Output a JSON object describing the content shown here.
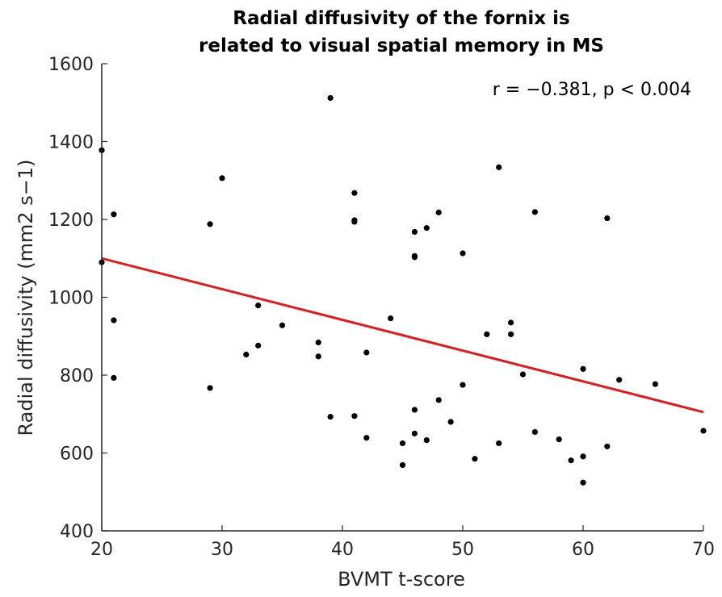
{
  "chart_data": {
    "type": "scatter",
    "title": [
      "Radial diffusivity of the fornix is",
      "related to visual spatial memory in MS"
    ],
    "xlabel": "BVMT t-score",
    "ylabel": "Radial diffusivity (mm2 s−1)",
    "xlim": [
      20,
      70
    ],
    "ylim": [
      400,
      1600
    ],
    "xticks": [
      20,
      30,
      40,
      50,
      60,
      70
    ],
    "yticks": [
      400,
      600,
      800,
      1000,
      1200,
      1400,
      1600
    ],
    "annotation": "r = −0.381, p < 0.004",
    "grid": false,
    "colors": {
      "points": "#000000",
      "fit_line": "#e31a1c",
      "axis": "#262626"
    },
    "fit_line": {
      "x": [
        20,
        70
      ],
      "y": [
        1100,
        705
      ]
    },
    "points": {
      "x": [
        20,
        20,
        21,
        21,
        21,
        29,
        29,
        30,
        32,
        33,
        33,
        35,
        38,
        38,
        39,
        39,
        41,
        41,
        41,
        41,
        42,
        42,
        44,
        45,
        45,
        46,
        46,
        46,
        46,
        46,
        47,
        47,
        48,
        48,
        49,
        50,
        50,
        51,
        52,
        53,
        53,
        54,
        54,
        55,
        56,
        56,
        58,
        59,
        60,
        60,
        60,
        62,
        62,
        63,
        66,
        70
      ],
      "y": [
        1378,
        1090,
        1213,
        941,
        793,
        1188,
        767,
        1306,
        853,
        979,
        876,
        928,
        884,
        848,
        1512,
        693,
        1268,
        1198,
        1194,
        695,
        858,
        639,
        946,
        625,
        569,
        1168,
        1106,
        1103,
        711,
        650,
        1178,
        633,
        1218,
        736,
        680,
        1113,
        775,
        585,
        905,
        1334,
        625,
        935,
        905,
        802,
        1219,
        654,
        635,
        581,
        816,
        591,
        524,
        1203,
        617,
        788,
        777,
        657
      ]
    }
  }
}
